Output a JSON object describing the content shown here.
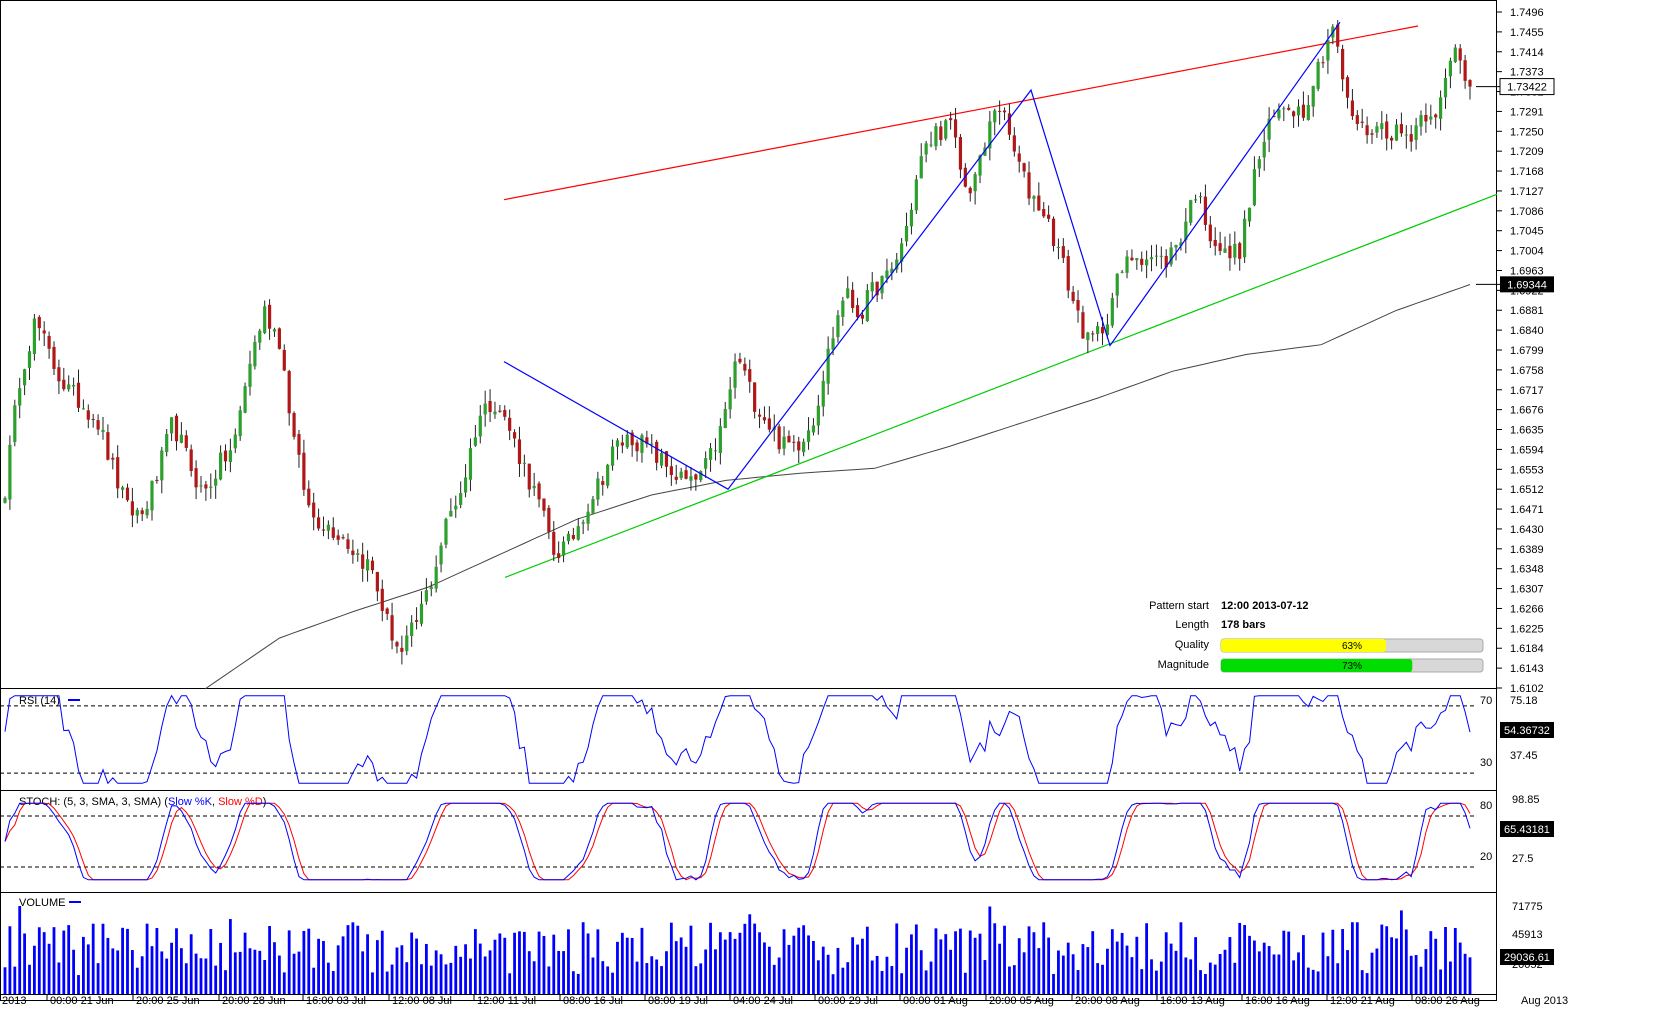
{
  "colors": {
    "bull": "#2e9e2e",
    "bear": "#b01818",
    "wick": "#222222",
    "upper_trend": "#ff0000",
    "lower_trend": "#00cc00",
    "zigzag": "#0000ff",
    "ma": "#444444",
    "rsi": "#0000ff",
    "stoch_k": "#0000ff",
    "stoch_d": "#ff0000",
    "volume": "#0000ff",
    "quality_fill": "#ffff00",
    "magnitude_fill": "#00dd00",
    "bar_bg": "#d8d8d8"
  },
  "price_axis": {
    "ticks": [
      "1.7496",
      "1.7455",
      "1.7414",
      "1.7373",
      "1.7332",
      "1.7291",
      "1.7250",
      "1.7209",
      "1.7168",
      "1.7127",
      "1.7086",
      "1.7045",
      "1.7004",
      "1.6963",
      "1.6922",
      "1.6881",
      "1.6840",
      "1.6799",
      "1.6758",
      "1.6717",
      "1.6676",
      "1.6635",
      "1.6594",
      "1.6553",
      "1.6512",
      "1.6471",
      "1.6430",
      "1.6389",
      "1.6348",
      "1.6307",
      "1.6266",
      "1.6225",
      "1.6184",
      "1.6143",
      "1.6102"
    ],
    "last_price": "1.73422",
    "ma_value": "1.69344"
  },
  "rsi": {
    "label": "RSI (14)",
    "ticks": [
      "75.18",
      "37.45"
    ],
    "levels": [
      "70",
      "30"
    ],
    "value": "54.36732"
  },
  "stoch": {
    "label_prefix": "STOCH: (5, 3, SMA, 3, SMA) (",
    "label_k": "Slow %K",
    "label_sep": ", ",
    "label_d": "Slow %D",
    "label_suffix": ")",
    "ticks": [
      "98.85",
      "27.5"
    ],
    "levels": [
      "80",
      "20"
    ],
    "value": "65.43181"
  },
  "volume": {
    "label": "VOLUME",
    "ticks": [
      "71775",
      "45913",
      "20052"
    ],
    "value": "29036.61"
  },
  "time_axis": [
    "2013",
    "00:00 21 Jun",
    "20:00 25 Jun",
    "20:00 28 Jun",
    "16:00 03 Jul",
    "12:00 08 Jul",
    "12:00 11 Jul",
    "08:00 16 Jul",
    "08:00 19 Jul",
    "04:00 24 Jul",
    "00:00 29 Jul",
    "00:00 01 Aug",
    "20:00 05 Aug",
    "20:00 08 Aug",
    "16:00 13 Aug",
    "16:00 16 Aug",
    "12:00 21 Aug",
    "08:00 26 Aug",
    "Aug 2013"
  ],
  "pattern_info": {
    "start_label": "Pattern start",
    "start_value": "12:00 2013-07-12",
    "length_label": "Length",
    "length_value": "178 bars",
    "quality_label": "Quality",
    "quality_value": "63%",
    "quality_fraction": 0.63,
    "magnitude_label": "Magnitude",
    "magnitude_value": "73%",
    "magnitude_fraction": 0.73
  },
  "chart_data": {
    "type": "candlestick",
    "title": "",
    "ylim": [
      1.6102,
      1.7496
    ],
    "anchors": [
      1.6512,
      1.675,
      1.686,
      1.678,
      1.672,
      1.669,
      1.666,
      1.656,
      1.647,
      1.646,
      1.654,
      1.665,
      1.657,
      1.65,
      1.656,
      1.66,
      1.677,
      1.688,
      1.682,
      1.66,
      1.646,
      1.644,
      1.642,
      1.638,
      1.635,
      1.624,
      1.617,
      1.624,
      1.633,
      1.645,
      1.652,
      1.666,
      1.67,
      1.664,
      1.656,
      1.648,
      1.638,
      1.64,
      1.647,
      1.653,
      1.66,
      1.662,
      1.66,
      1.657,
      1.654,
      1.652,
      1.656,
      1.664,
      1.679,
      1.67,
      1.665,
      1.66,
      1.661,
      1.666,
      1.68,
      1.692,
      1.687,
      1.693,
      1.695,
      1.704,
      1.719,
      1.725,
      1.726,
      1.712,
      1.719,
      1.732,
      1.722,
      1.713,
      1.709,
      1.701,
      1.69,
      1.681,
      1.685,
      1.695,
      1.7,
      1.699,
      1.698,
      1.703,
      1.713,
      1.704,
      1.699,
      1.701,
      1.718,
      1.727,
      1.731,
      1.729,
      1.738,
      1.747,
      1.73,
      1.725,
      1.726,
      1.725,
      1.724,
      1.729,
      1.73,
      1.742,
      1.7342
    ],
    "ma_anchors": [
      1.61,
      1.6205,
      1.626,
      1.631,
      1.638,
      1.645,
      1.65,
      1.653,
      1.6545,
      1.6555,
      1.66,
      1.665,
      1.67,
      1.6755,
      1.679,
      1.681,
      1.688,
      1.6934
    ],
    "rsi_range": [
      20,
      80
    ],
    "stoch_range": [
      0,
      100
    ],
    "volume_range": [
      0,
      80000
    ],
    "rsi_last": 54.37,
    "stoch_last": 65.43,
    "volume_last": 29036.61
  }
}
